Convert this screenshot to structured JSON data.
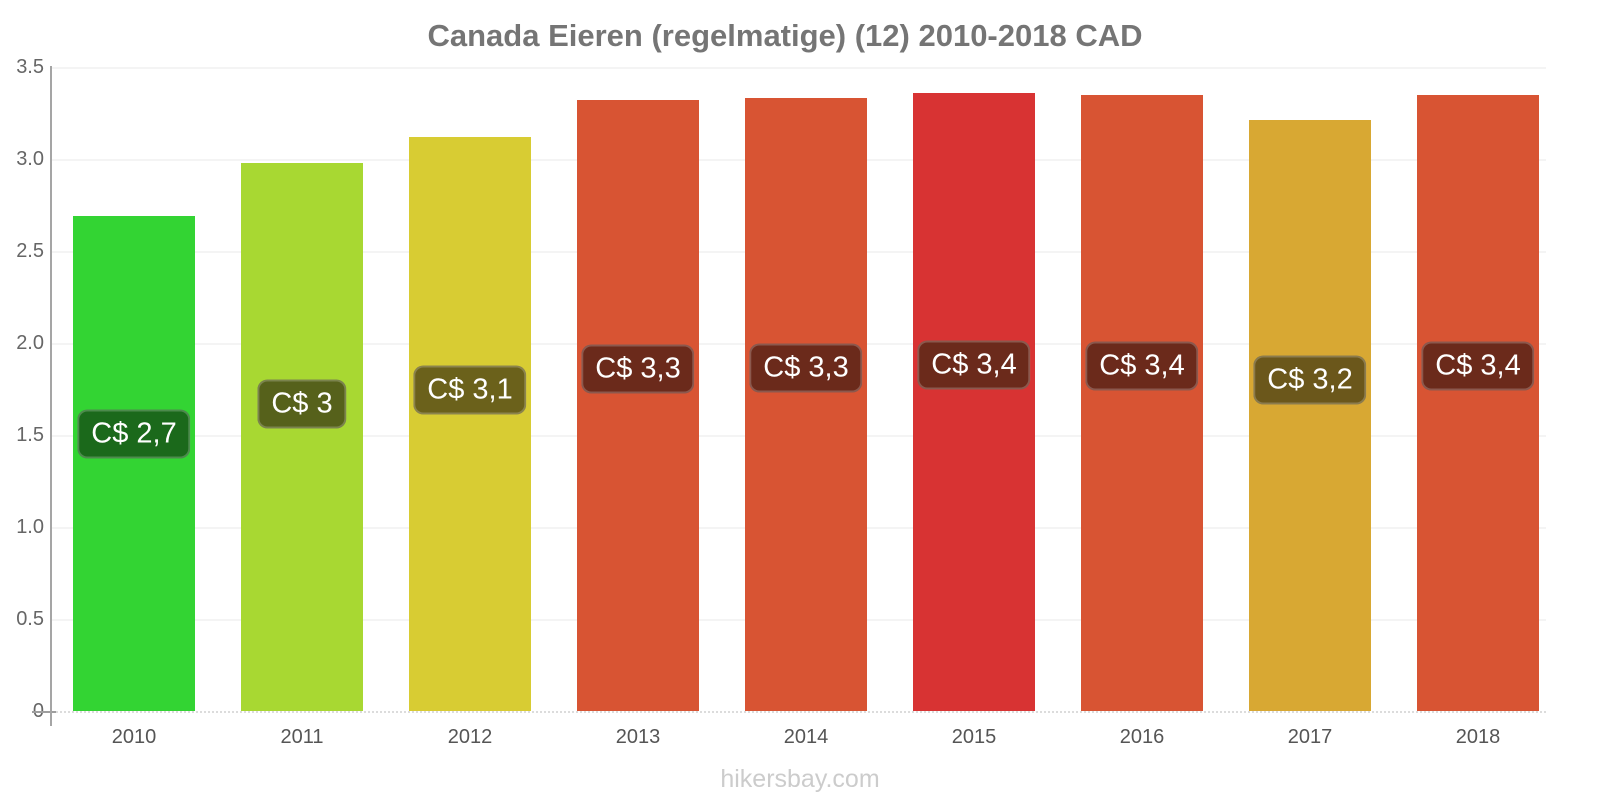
{
  "title": "Canada Eieren (regelmatige) (12) 2010-2018 CAD",
  "footer": "hikersbay.com",
  "colors": {
    "title_text": "#757575",
    "axis_line": "#a5a5a5",
    "gridline": "#f4f4f4",
    "y_tick_text": "#666666",
    "x_tick_text": "#555555",
    "footer_text": "#cccccc",
    "badge_text": "#ffffff"
  },
  "chart_data": {
    "type": "bar",
    "title": "Canada Eieren (regelmatige) (12) 2010-2018 CAD",
    "xlabel": "",
    "ylabel": "",
    "categories": [
      "2010",
      "2011",
      "2012",
      "2013",
      "2014",
      "2015",
      "2016",
      "2017",
      "2018"
    ],
    "values": [
      2.69,
      2.98,
      3.12,
      3.32,
      3.33,
      3.36,
      3.35,
      3.21,
      3.35
    ],
    "bar_labels": [
      "C$ 2,7",
      "C$ 3",
      "C$ 3,1",
      "C$ 3,3",
      "C$ 3,3",
      "C$ 3,4",
      "C$ 3,4",
      "C$ 3,2",
      "C$ 3,4"
    ],
    "bar_colors": [
      "#33d433",
      "#a8d832",
      "#d8cc33",
      "#d85433",
      "#d85433",
      "#d83333",
      "#d85433",
      "#d8a833",
      "#d85433"
    ],
    "label_bg_colors": [
      "#1b691b",
      "#56611b",
      "#6b611b",
      "#6b2a1b",
      "#6b2a1b",
      "#6b2a1b",
      "#6b2a1b",
      "#6b571b",
      "#6b2a1b"
    ],
    "ylim": [
      0,
      3.5
    ],
    "yticks": [
      0,
      0.5,
      1.0,
      1.5,
      2.0,
      2.5,
      3.0,
      3.5
    ],
    "ytick_labels": [
      "0",
      "0.5",
      "1.0",
      "1.5",
      "2.0",
      "2.5",
      "3.0",
      "3.5"
    ],
    "grid": true,
    "legend": "none"
  }
}
